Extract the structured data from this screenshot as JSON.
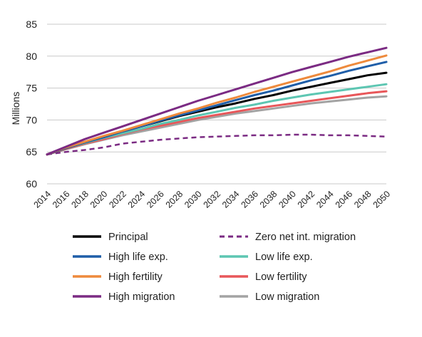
{
  "chart_data": {
    "type": "line",
    "title": "",
    "xlabel": "",
    "ylabel": "Millions",
    "ylim": [
      60,
      85
    ],
    "yticks": [
      60,
      65,
      70,
      75,
      80,
      85
    ],
    "xlim": [
      2014,
      2050
    ],
    "xticks": [
      "2014",
      "2016",
      "2018",
      "2020",
      "2022",
      "2024",
      "2026",
      "2028",
      "2030",
      "2032",
      "2034",
      "2036",
      "2038",
      "2040",
      "2042",
      "2044",
      "2046",
      "2048",
      "2050"
    ],
    "grid": "horizontal",
    "legend_position": "bottom",
    "x": [
      2014,
      2016,
      2018,
      2020,
      2022,
      2024,
      2026,
      2028,
      2030,
      2032,
      2034,
      2036,
      2038,
      2040,
      2042,
      2044,
      2046,
      2048,
      2050
    ],
    "series": [
      {
        "name": "Principal",
        "color": "#000000",
        "dashed": false,
        "values": [
          64.6,
          65.6,
          66.5,
          67.3,
          68.2,
          69.0,
          69.8,
          70.6,
          71.3,
          72.0,
          72.6,
          73.3,
          73.9,
          74.6,
          75.2,
          75.8,
          76.4,
          77.0,
          77.4
        ]
      },
      {
        "name": "Zero net int. migration",
        "color": "#7b2b83",
        "dashed": true,
        "values": [
          64.6,
          65.0,
          65.3,
          65.7,
          66.3,
          66.6,
          66.9,
          67.1,
          67.3,
          67.4,
          67.5,
          67.6,
          67.6,
          67.7,
          67.7,
          67.6,
          67.6,
          67.5,
          67.4
        ]
      },
      {
        "name": "High life exp.",
        "color": "#1f5ea8",
        "dashed": false,
        "values": [
          64.6,
          65.6,
          66.5,
          67.3,
          68.2,
          69.0,
          69.9,
          70.7,
          71.5,
          72.3,
          73.1,
          73.9,
          74.6,
          75.4,
          76.2,
          76.9,
          77.7,
          78.4,
          79.1
        ]
      },
      {
        "name": "Low life exp.",
        "color": "#5dc6b2",
        "dashed": false,
        "values": [
          64.6,
          65.6,
          66.4,
          67.2,
          67.9,
          68.6,
          69.4,
          70.0,
          70.7,
          71.3,
          71.9,
          72.4,
          73.0,
          73.5,
          74.0,
          74.4,
          74.8,
          75.2,
          75.6
        ]
      },
      {
        "name": "High fertility",
        "color": "#ee8a3c",
        "dashed": false,
        "values": [
          64.6,
          65.7,
          66.6,
          67.5,
          68.3,
          69.2,
          70.1,
          71.0,
          71.8,
          72.7,
          73.5,
          74.4,
          75.2,
          76.0,
          76.8,
          77.6,
          78.5,
          79.3,
          80.1
        ]
      },
      {
        "name": "Low fertility",
        "color": "#e8575a",
        "dashed": false,
        "values": [
          64.6,
          65.5,
          66.3,
          67.0,
          67.8,
          68.5,
          69.1,
          69.7,
          70.3,
          70.8,
          71.3,
          71.8,
          72.2,
          72.6,
          73.0,
          73.4,
          73.8,
          74.2,
          74.5
        ]
      },
      {
        "name": "High migration",
        "color": "#7b2b83",
        "dashed": false,
        "values": [
          64.6,
          65.8,
          67.0,
          68.0,
          69.0,
          70.0,
          71.0,
          72.0,
          73.0,
          73.9,
          74.8,
          75.7,
          76.6,
          77.5,
          78.3,
          79.1,
          79.9,
          80.6,
          81.3
        ]
      },
      {
        "name": "Low migration",
        "color": "#a3a3a3",
        "dashed": false,
        "values": [
          64.6,
          65.4,
          66.2,
          66.9,
          67.6,
          68.2,
          68.8,
          69.4,
          70.0,
          70.5,
          71.0,
          71.4,
          71.8,
          72.2,
          72.6,
          72.9,
          73.2,
          73.5,
          73.7
        ]
      }
    ]
  }
}
